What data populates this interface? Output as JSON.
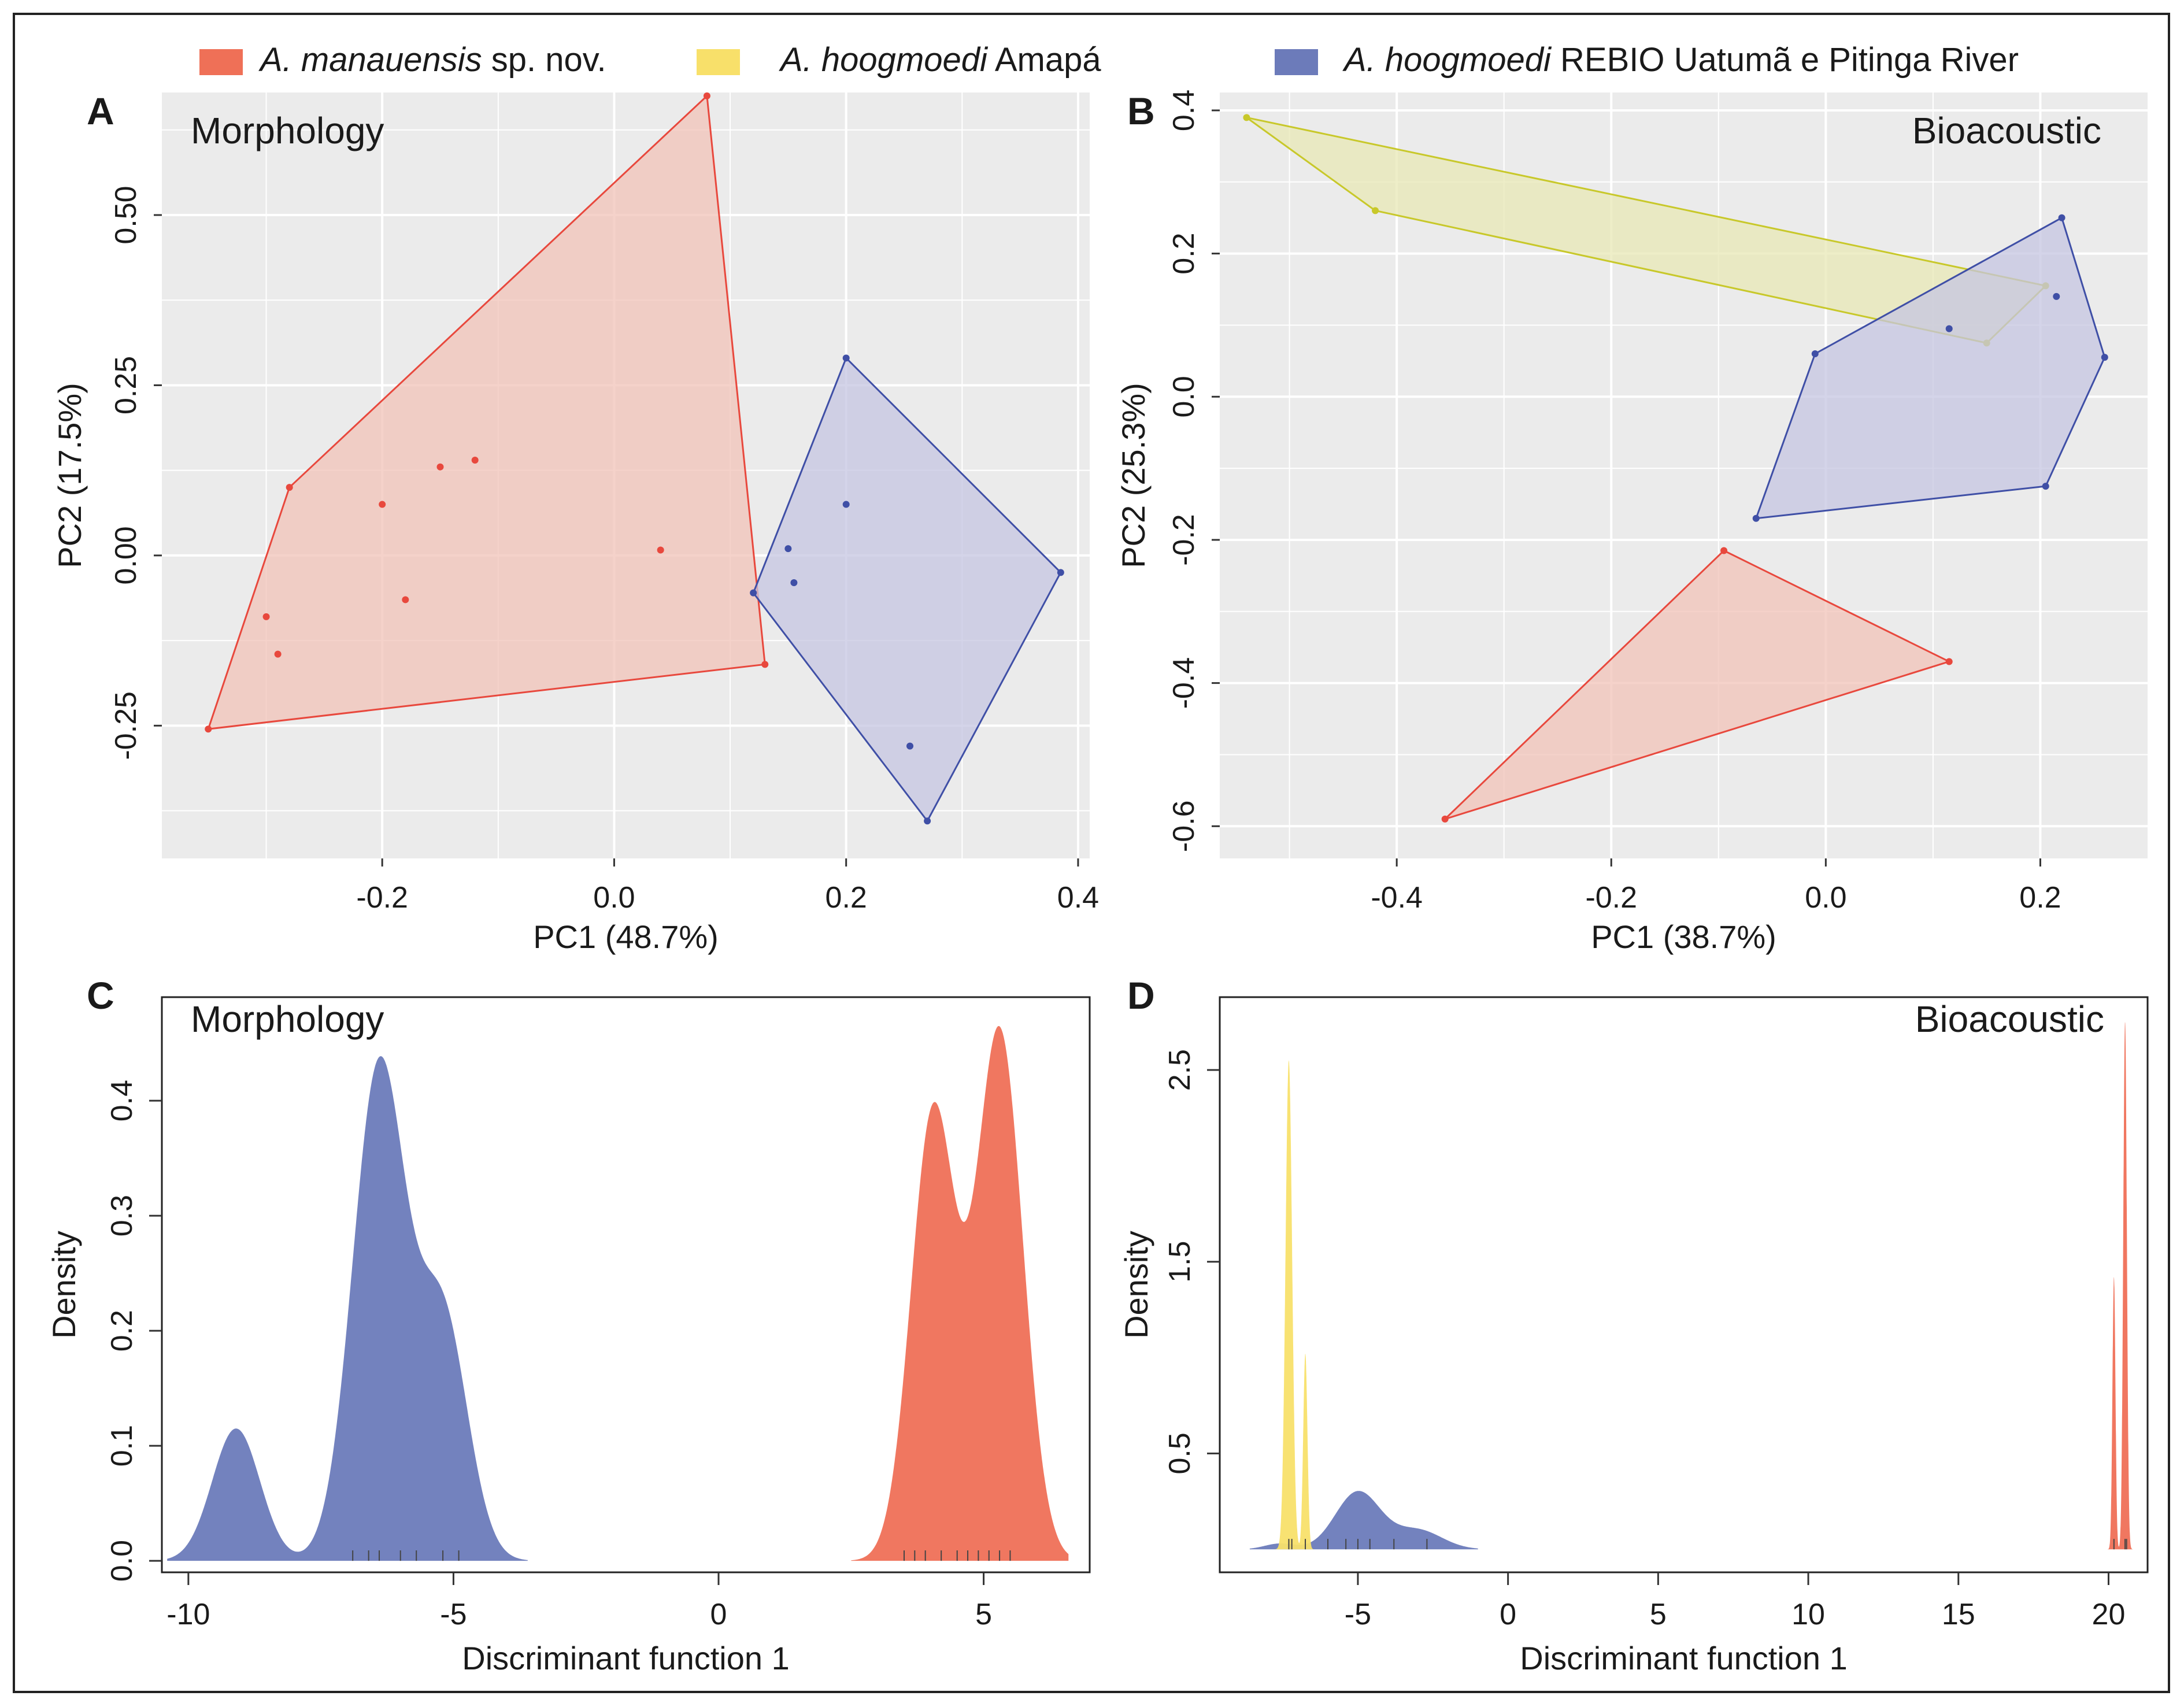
{
  "legend": {
    "items": [
      {
        "italic": "A. manauensis",
        "plain": " sp. nov.",
        "color": "#ef7057"
      },
      {
        "italic": "A. hoogmoedi",
        "plain": " Amapá",
        "color": "#f8e06a"
      },
      {
        "italic": "A. hoogmoedi",
        "plain": " REBIO Uatumã e Pitinga River",
        "color": "#6c7bba"
      }
    ]
  },
  "colors": {
    "red_line": "#e8483d",
    "red_fill": "#f2c3b8",
    "blue_line": "#3f4fa6",
    "blue_fill": "#c5c6e1",
    "yellow_line": "#c8c82a",
    "yellow_fill": "#e8e8b5",
    "red_density": "#ef7057",
    "blue_density": "#6c7bba",
    "yellow_density": "#f8e06a",
    "panel_bg": "#ebebeb",
    "grid": "#ffffff"
  },
  "chart_data": [
    {
      "panel": "A",
      "type": "scatter",
      "title": "Morphology",
      "xlabel": "PC1 (48.7%)",
      "ylabel": "PC2 (17.5%)",
      "xlim": [
        -0.39,
        0.41
      ],
      "ylim": [
        -0.445,
        0.68
      ],
      "xticks": [
        -0.2,
        0.0,
        0.2,
        0.4
      ],
      "xtick_labels": [
        "-0.2",
        "0.0",
        "0.2",
        "0.4"
      ],
      "yticks": [
        -0.25,
        0.0,
        0.25,
        0.5
      ],
      "ytick_labels": [
        "-0.25",
        "0.00",
        "0.25",
        "0.50"
      ],
      "series": [
        {
          "name": "A. manauensis sp. nov.",
          "color": "red",
          "hull": [
            [
              0.08,
              0.675
            ],
            [
              0.13,
              -0.16
            ],
            [
              -0.35,
              -0.255
            ],
            [
              -0.28,
              0.1
            ]
          ],
          "points": [
            [
              0.08,
              0.675
            ],
            [
              0.13,
              -0.16
            ],
            [
              -0.35,
              -0.255
            ],
            [
              -0.28,
              0.1
            ],
            [
              -0.2,
              0.075
            ],
            [
              -0.15,
              0.13
            ],
            [
              -0.12,
              0.14
            ],
            [
              -0.3,
              -0.09
            ],
            [
              -0.29,
              -0.145
            ],
            [
              -0.18,
              -0.065
            ],
            [
              0.04,
              0.008
            ]
          ]
        },
        {
          "name": "A. hoogmoedi REBIO Uatumã e Pitinga River",
          "color": "blue",
          "hull": [
            [
              0.2,
              0.29
            ],
            [
              0.385,
              -0.025
            ],
            [
              0.27,
              -0.39
            ],
            [
              0.12,
              -0.055
            ]
          ],
          "points": [
            [
              0.2,
              0.29
            ],
            [
              0.385,
              -0.025
            ],
            [
              0.27,
              -0.39
            ],
            [
              0.12,
              -0.055
            ],
            [
              0.2,
              0.075
            ],
            [
              0.15,
              0.01
            ],
            [
              0.155,
              -0.04
            ],
            [
              0.255,
              -0.28
            ]
          ]
        }
      ]
    },
    {
      "panel": "B",
      "type": "scatter",
      "title": "Bioacoustic",
      "xlabel": "PC1 (38.7%)",
      "ylabel": "PC2 (25.3%)",
      "xlim": [
        -0.565,
        0.3
      ],
      "ylim": [
        -0.645,
        0.425
      ],
      "xticks": [
        -0.4,
        -0.2,
        0.0,
        0.2
      ],
      "xtick_labels": [
        "-0.4",
        "-0.2",
        "0.0",
        "0.2"
      ],
      "yticks": [
        -0.6,
        -0.4,
        -0.2,
        0.0,
        0.2,
        0.4
      ],
      "ytick_labels": [
        "-0.6",
        "-0.4",
        "-0.2",
        "0.0",
        "0.2",
        "0.4"
      ],
      "series": [
        {
          "name": "A. hoogmoedi Amapá",
          "color": "yellow",
          "hull": [
            [
              -0.54,
              0.39
            ],
            [
              0.205,
              0.155
            ],
            [
              0.15,
              0.075
            ],
            [
              -0.42,
              0.26
            ]
          ],
          "points": [
            [
              -0.54,
              0.39
            ],
            [
              0.205,
              0.155
            ],
            [
              0.15,
              0.075
            ],
            [
              -0.42,
              0.26
            ]
          ]
        },
        {
          "name": "A. hoogmoedi REBIO Uatumã e Pitinga River",
          "color": "blue",
          "hull": [
            [
              0.22,
              0.25
            ],
            [
              0.26,
              0.055
            ],
            [
              0.205,
              -0.125
            ],
            [
              -0.065,
              -0.17
            ],
            [
              -0.01,
              0.06
            ]
          ],
          "points": [
            [
              0.22,
              0.25
            ],
            [
              0.26,
              0.055
            ],
            [
              0.205,
              -0.125
            ],
            [
              -0.065,
              -0.17
            ],
            [
              -0.01,
              0.06
            ],
            [
              0.115,
              0.095
            ],
            [
              0.215,
              0.14
            ]
          ]
        },
        {
          "name": "A. manauensis sp. nov.",
          "color": "red",
          "hull": [
            [
              -0.095,
              -0.215
            ],
            [
              0.115,
              -0.37
            ],
            [
              -0.355,
              -0.59
            ]
          ],
          "points": [
            [
              -0.095,
              -0.215
            ],
            [
              0.115,
              -0.37
            ],
            [
              -0.355,
              -0.59
            ]
          ]
        }
      ]
    },
    {
      "panel": "C",
      "type": "area",
      "title": "Morphology",
      "xlabel": "Discriminant function 1",
      "ylabel": "Density",
      "xlim": [
        -10.5,
        7
      ],
      "ylim": [
        -0.01,
        0.49
      ],
      "xticks": [
        -10,
        -5,
        0,
        5
      ],
      "xtick_labels": [
        "-10",
        "-5",
        "0",
        "5"
      ],
      "yticks": [
        0.0,
        0.1,
        0.2,
        0.3,
        0.4
      ],
      "ytick_labels": [
        "0.0",
        "0.1",
        "0.2",
        "0.3",
        "0.4"
      ],
      "series": [
        {
          "name": "A. hoogmoedi REBIO Uatumã e Pitinga River",
          "color": "blue",
          "components": [
            [
              -9.1,
              0.45,
              0.115
            ],
            [
              -6.4,
              0.5,
              0.43
            ],
            [
              -5.2,
              0.47,
              0.21
            ]
          ],
          "range": [
            -10.4,
            -3.6
          ],
          "rug": [
            -6.6,
            -6.4,
            -6.0,
            -5.7,
            -5.2,
            -4.9,
            -6.9
          ]
        },
        {
          "name": "A. manauensis sp. nov.",
          "color": "red",
          "components": [
            [
              4.05,
              0.42,
              0.39
            ],
            [
              5.3,
              0.44,
              0.46
            ]
          ],
          "range": [
            2.5,
            6.6
          ],
          "rug": [
            3.5,
            3.9,
            4.2,
            4.5,
            4.9,
            5.1,
            5.3,
            5.5,
            4.7,
            3.7
          ]
        }
      ]
    },
    {
      "panel": "D",
      "type": "area",
      "title": "Bioacoustic",
      "xlabel": "Discriminant function 1",
      "ylabel": "Density",
      "xlim": [
        -9.6,
        21.3
      ],
      "ylim": [
        -0.12,
        2.88
      ],
      "xticks": [
        -5,
        0,
        5,
        10,
        15,
        20
      ],
      "xtick_labels": [
        "-5",
        "0",
        "5",
        "10",
        "15",
        "20"
      ],
      "yticks": [
        0.5,
        1.5,
        2.5
      ],
      "ytick_labels": [
        "0.5",
        "1.5",
        "2.5"
      ],
      "series": [
        {
          "name": "A. hoogmoedi REBIO Uatumã e Pitinga River",
          "color": "blue",
          "components": [
            [
              -7.6,
              0.5,
              0.03
            ],
            [
              -5.0,
              0.75,
              0.3
            ],
            [
              -3.0,
              0.8,
              0.1
            ]
          ],
          "range": [
            -8.6,
            -1.0
          ],
          "rug": [
            -6.0,
            -5.4,
            -5.0,
            -4.6,
            -3.8,
            -2.7
          ]
        },
        {
          "name": "A. hoogmoedi Amapá",
          "color": "yellow",
          "components": [
            [
              -7.3,
              0.11,
              2.55
            ],
            [
              -6.75,
              0.07,
              1.02
            ]
          ],
          "range": [
            -7.9,
            -6.4
          ],
          "rug": [
            -7.3,
            -7.2,
            -6.75
          ]
        },
        {
          "name": "A. manauensis sp. nov.",
          "color": "red",
          "components": [
            [
              20.18,
              0.05,
              1.42
            ],
            [
              20.55,
              0.06,
              2.75
            ]
          ],
          "range": [
            19.9,
            20.9
          ],
          "rug": [
            20.18,
            20.55,
            20.6
          ]
        }
      ]
    }
  ]
}
